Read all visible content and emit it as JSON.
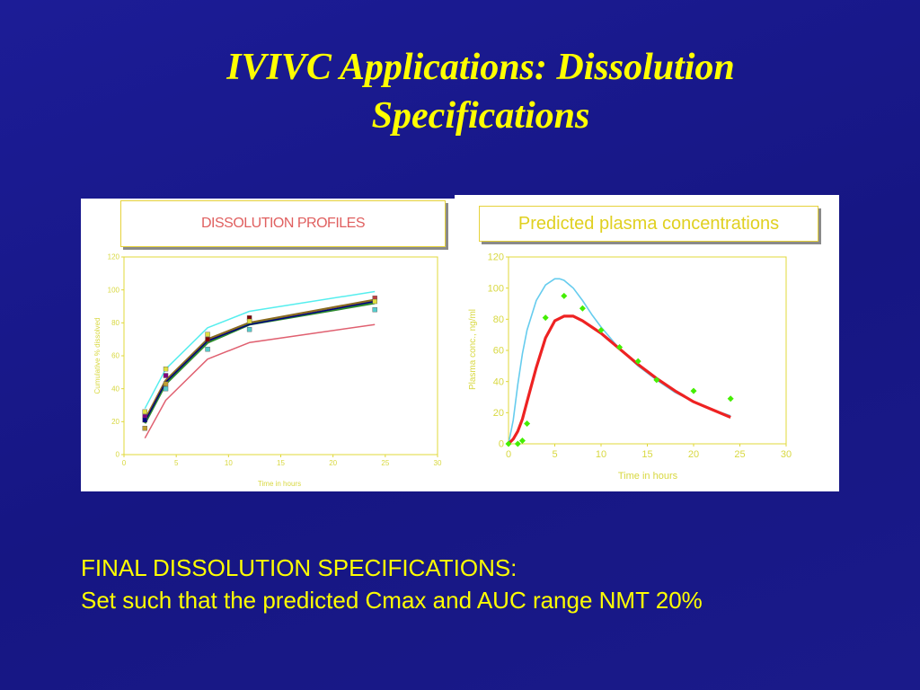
{
  "slide": {
    "title_line1": "IVIVC Applications: Dissolution",
    "title_line2": "Specifications",
    "spec_heading": "FINAL DISSOLUTION SPECIFICATIONS:",
    "spec_body": "Set such that the predicted Cmax and AUC range NMT 20%"
  },
  "chart_data": [
    {
      "type": "line",
      "title": "DISSOLUTION PROFILES",
      "xlabel": "Time in hours",
      "ylabel": "Cumulative % dissolved",
      "xlim": [
        0,
        30
      ],
      "ylim": [
        0,
        120
      ],
      "xticks": [
        0,
        5,
        10,
        15,
        20,
        25,
        30
      ],
      "yticks": [
        0,
        20,
        40,
        60,
        80,
        100,
        120
      ],
      "x": [
        2,
        4,
        8,
        12,
        24
      ],
      "series": [
        {
          "color": "#55eeee",
          "values": [
            28,
            52,
            77,
            87,
            99
          ]
        },
        {
          "color": "#8a6a20",
          "values": [
            21,
            45,
            70,
            80,
            94
          ]
        },
        {
          "color": "#2e8b2e",
          "values": [
            19,
            43,
            68,
            79,
            92
          ]
        },
        {
          "color": "#000080",
          "values": [
            20,
            44,
            69,
            79,
            93
          ]
        },
        {
          "color": "#e06070",
          "values": [
            10,
            33,
            58,
            68,
            79
          ]
        }
      ],
      "points": {
        "x": [
          2,
          2,
          2,
          2,
          4,
          4,
          4,
          4,
          8,
          8,
          8,
          12,
          12,
          12,
          24,
          24,
          24
        ],
        "y": [
          26,
          23,
          21,
          16,
          52,
          48,
          43,
          40,
          73,
          70,
          64,
          83,
          81,
          76,
          95,
          93,
          88
        ],
        "colors": [
          "#e0e040",
          "#800080",
          "#000080",
          "#c0a030",
          "#e0e040",
          "#800080",
          "#c0a030",
          "#55cccc",
          "#e0e040",
          "#800000",
          "#55cccc",
          "#800000",
          "#e0e040",
          "#55cccc",
          "#c04040",
          "#e0e040",
          "#55cccc"
        ]
      }
    },
    {
      "type": "line",
      "title": "Predicted plasma concentrations",
      "xlabel": "Time in hours",
      "ylabel": "Plasma conc., ng/ml",
      "xlim": [
        0,
        30
      ],
      "ylim": [
        0,
        120
      ],
      "xticks": [
        0,
        5,
        10,
        15,
        20,
        25,
        30
      ],
      "yticks": [
        0,
        20,
        40,
        60,
        80,
        100,
        120
      ],
      "series": [
        {
          "color": "#66ccee",
          "x": [
            0,
            0.5,
            1,
            1.5,
            2,
            3,
            4,
            5,
            5.5,
            6,
            7,
            8,
            9,
            10,
            12,
            14,
            16,
            18,
            20,
            22,
            24
          ],
          "values": [
            0,
            15,
            38,
            58,
            73,
            92,
            102,
            106,
            106,
            105,
            100,
            92,
            83,
            75,
            61,
            50,
            41,
            33,
            27,
            22,
            18
          ]
        },
        {
          "color": "#ee2222",
          "x": [
            0,
            0.5,
            1,
            1.5,
            2,
            3,
            4,
            5,
            6,
            7,
            8,
            9,
            10,
            12,
            14,
            16,
            18,
            20,
            22,
            24
          ],
          "values": [
            0,
            3,
            8,
            16,
            27,
            49,
            68,
            79,
            82,
            82,
            79,
            75,
            71,
            61,
            51,
            42,
            34,
            27,
            22,
            17
          ]
        }
      ],
      "points": {
        "x": [
          0,
          1,
          1.5,
          2,
          4,
          6,
          8,
          10,
          12,
          14,
          16,
          20,
          24
        ],
        "y": [
          0,
          0,
          2,
          13,
          81,
          95,
          87,
          73,
          62,
          53,
          41,
          34,
          29
        ],
        "color": "#44ee00"
      }
    }
  ]
}
